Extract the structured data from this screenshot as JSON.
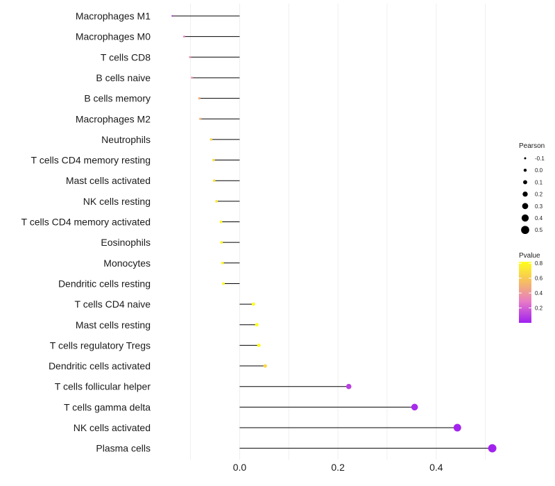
{
  "chart_data": {
    "type": "lollipop",
    "categories": [
      "Macrophages M1",
      "Macrophages M0",
      "T cells CD8",
      "B cells naive",
      "B cells memory",
      "Macrophages M2",
      "Neutrophils",
      "T cells CD4 memory resting",
      "Mast cells activated",
      "NK cells resting",
      "T cells CD4 memory activated",
      "Eosinophils",
      "Monocytes",
      "Dendritic cells resting",
      "T cells CD4 naive",
      "Mast cells resting",
      "T cells regulatory  Tregs ",
      "Dendritic cells activated",
      "T cells follicular helper",
      "T cells gamma delta",
      "NK cells activated",
      "Plasma cells"
    ],
    "values": [
      -0.137,
      -0.113,
      -0.101,
      -0.097,
      -0.082,
      -0.08,
      -0.058,
      -0.053,
      -0.052,
      -0.047,
      -0.038,
      -0.037,
      -0.035,
      -0.033,
      0.028,
      0.035,
      0.039,
      0.052,
      0.222,
      0.356,
      0.443,
      0.514
    ],
    "pvalues": [
      0.08,
      0.3,
      0.36,
      0.38,
      0.48,
      0.5,
      0.65,
      0.68,
      0.7,
      0.72,
      0.78,
      0.78,
      0.79,
      0.79,
      0.81,
      0.82,
      0.8,
      0.66,
      0.1,
      0.03,
      0.01,
      0.005
    ],
    "xticks": [
      0.0,
      0.2,
      0.4
    ],
    "xtick_labels": [
      "0.0",
      "0.2",
      "0.4"
    ],
    "xlim": [
      -0.17,
      0.54
    ],
    "title": "",
    "xlabel": "",
    "ylabel": "",
    "size_legend": {
      "title": "Pearson",
      "values": [
        -0.1,
        0.0,
        0.1,
        0.2,
        0.3,
        0.4,
        0.5
      ],
      "labels": [
        "-0.1",
        "0.0",
        "0.1",
        "0.2",
        "0.3",
        "0.4",
        "0.5"
      ]
    },
    "color_legend": {
      "title": "Pvalue",
      "range": [
        0.0,
        0.82
      ],
      "ticks": [
        0.2,
        0.4,
        0.6,
        0.8
      ],
      "tick_labels": [
        "0.2",
        "0.4",
        "0.6",
        "0.8"
      ],
      "colors": [
        "#a020f0",
        "#e87bc6",
        "#f7c35a",
        "#ffff1a"
      ]
    },
    "grid": "vertical"
  }
}
